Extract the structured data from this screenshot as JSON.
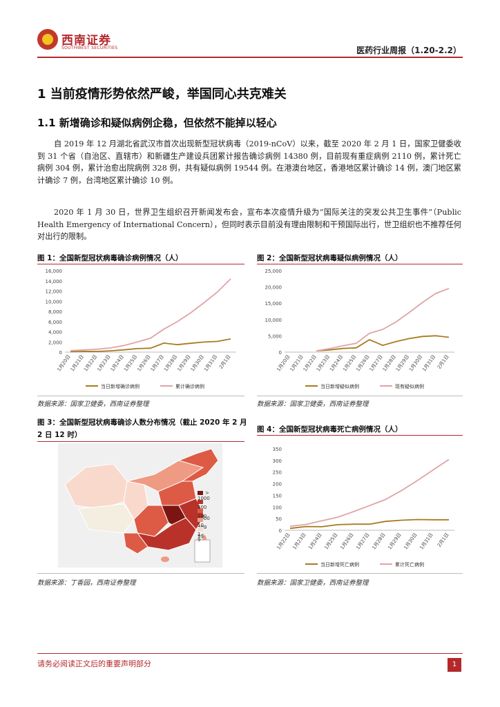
{
  "header": {
    "logo_cn": "西南证券",
    "logo_en": "SOUTHWEST SECURITIES",
    "report_title": "医药行业周报（1.20-2.2）"
  },
  "section1": {
    "heading": "1 当前疫情形势依然严峻，举国同心共克难关",
    "sub1": {
      "heading": "1.1 新增确诊和疑似病例企稳，但依然不能掉以轻心",
      "para1": "自 2019 年 12 月湖北省武汉市首次出现新型冠状病毒（2019-nCoV）以来，截至 2020 年 2 月 1 日，国家卫健委收到 31 个省（自治区、直辖市）和新疆生产建设兵团累计报告确诊病例 14380 例，目前现有重症病例 2110 例，累计死亡病例 304 例，累计治愈出院病例 328 例，共有疑似病例 19544 例。在港澳台地区，香港地区累计确诊 14 例，澳门地区累计确诊 7 例，台湾地区累计确诊 10 例。",
      "para2": "2020 年 1 月 30 日，世界卫生组织召开新闻发布会，宣布本次疫情升级为“国际关注的突发公共卫生事件”（Public Health Emergency of International Concern），但同时表示目前没有理由限制和干预国际出行，世卫组织也不推荐任何对出行的限制。"
    }
  },
  "figures": {
    "fig1": {
      "title": "图 1：全国新型冠状病毒确诊病例情况（人）",
      "source": "数据来源：国家卫健委，西南证券整理"
    },
    "fig2": {
      "title": "图 2：全国新型冠状病毒疑似病例情况（人）",
      "source": "数据来源：国家卫健委，西南证券整理"
    },
    "fig3": {
      "title_line1": "图 3：全国新型冠状病毒确诊人数分布情况（截止 2020 年 2 月",
      "title_line2": "2 日 12 时）",
      "source": "数据来源：丁香园，西南证券整理"
    },
    "fig4": {
      "title": "图 4：全国新型冠状病毒死亡病例情况（人）",
      "source": "数据来源：国家卫健委，西南证券整理"
    }
  },
  "map_legend": [
    {
      "label": "> 1000",
      "color": "#7b1512"
    },
    {
      "label": "500 - 1000",
      "color": "#b8322a"
    },
    {
      "label": "100 - 499",
      "color": "#dd5b45"
    },
    {
      "label": "10 - 99",
      "color": "#ef9a82"
    },
    {
      "label": "1 - 9",
      "color": "#f9d9cc"
    }
  ],
  "footer": {
    "note": "请务必阅读正文后的重要声明部分",
    "page": "1"
  },
  "chart_data": [
    {
      "type": "line",
      "id": "fig1",
      "categories": [
        "1月20日",
        "1月21日",
        "1月22日",
        "1月23日",
        "1月24日",
        "1月25日",
        "1月26日",
        "1月27日",
        "1月28日",
        "1月29日",
        "1月30日",
        "1月31日",
        "2月1日"
      ],
      "series": [
        {
          "name": "当日新增确诊病例",
          "color": "#a77a1e",
          "values": [
            77,
            149,
            131,
            259,
            444,
            688,
            769,
            1771,
            1459,
            1737,
            1982,
            2102,
            2590
          ]
        },
        {
          "name": "累计确诊病例",
          "color": "#e0a3a6",
          "values": [
            291,
            440,
            571,
            830,
            1287,
            1975,
            2744,
            4515,
            5974,
            7711,
            9692,
            11791,
            14380
          ]
        }
      ],
      "yticks": [
        "0",
        "2,000",
        "4,000",
        "6,000",
        "8,000",
        "10,000",
        "12,000",
        "14,000",
        "16,000"
      ],
      "ylim": [
        0,
        16000
      ]
    },
    {
      "type": "line",
      "id": "fig2",
      "categories": [
        "1月20日",
        "1月21日",
        "1月22日",
        "1月23日",
        "1月24日",
        "1月25日",
        "1月26日",
        "1月27日",
        "1月28日",
        "1月29日",
        "1月30日",
        "1月31日",
        "2月1日"
      ],
      "series": [
        {
          "name": "当日新增疑似病例",
          "color": "#a77a1e",
          "values": [
            null,
            null,
            393,
            680,
            1118,
            1309,
            3806,
            2077,
            3248,
            4148,
            4812,
            5019,
            4562
          ]
        },
        {
          "name": "现有疑似病例",
          "color": "#e0a3a6",
          "values": [
            null,
            null,
            393,
            1072,
            1965,
            2684,
            5794,
            6973,
            9239,
            12167,
            15238,
            17988,
            19544
          ]
        }
      ],
      "yticks": [
        "0",
        "5,000",
        "10,000",
        "15,000",
        "20,000",
        "25,000"
      ],
      "ylim": [
        0,
        25000
      ]
    },
    {
      "type": "line",
      "id": "fig4",
      "categories": [
        "1月22日",
        "1月23日",
        "1月24日",
        "1月25日",
        "1月26日",
        "1月27日",
        "1月28日",
        "1月29日",
        "1月30日",
        "1月31日",
        "2月1日"
      ],
      "series": [
        {
          "name": "当日新增死亡病例",
          "color": "#a77a1e",
          "values": [
            8,
            16,
            15,
            24,
            26,
            26,
            38,
            43,
            46,
            45,
            45
          ]
        },
        {
          "name": "累计死亡病例",
          "color": "#e0a3a6",
          "values": [
            17,
            25,
            41,
            56,
            80,
            106,
            132,
            170,
            213,
            259,
            304
          ]
        }
      ],
      "yticks": [
        "0",
        "50",
        "100",
        "150",
        "200",
        "250",
        "300",
        "350"
      ],
      "ylim": [
        0,
        350
      ]
    }
  ]
}
